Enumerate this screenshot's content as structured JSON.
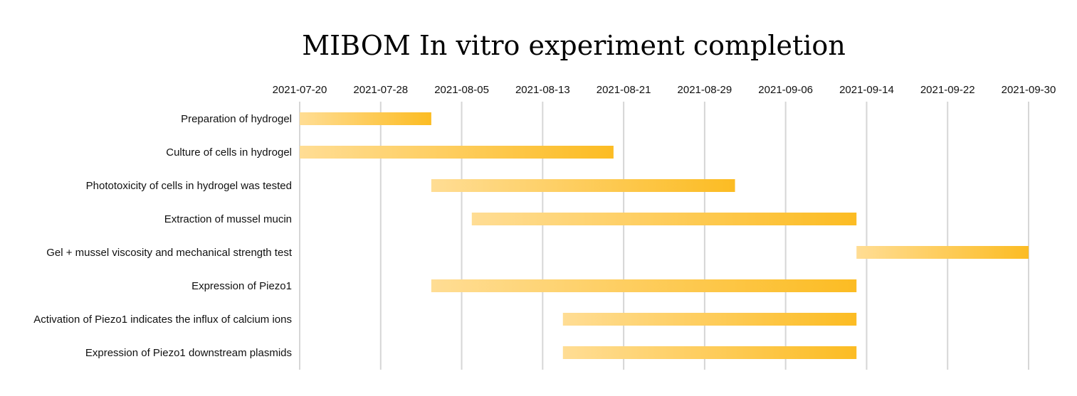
{
  "chart_data": {
    "type": "gantt",
    "title": "MIBOM In vitro experiment completion",
    "x_axis": {
      "type": "date",
      "position": "top",
      "range": [
        "2021-07-20",
        "2021-09-30"
      ],
      "ticks": [
        "2021-07-20",
        "2021-07-28",
        "2021-08-05",
        "2021-08-13",
        "2021-08-21",
        "2021-08-29",
        "2021-09-06",
        "2021-09-14",
        "2021-09-22",
        "2021-09-30"
      ]
    },
    "grid": {
      "vertical": true,
      "horizontal": false
    },
    "colors": {
      "bar_start": "#ffdd94",
      "bar_end": "#fcbc23",
      "grid": "#d6d6d6"
    },
    "tasks": [
      {
        "name": "Preparation of hydrogel",
        "start": "2021-07-20",
        "end": "2021-08-02"
      },
      {
        "name": "Culture of cells in hydrogel",
        "start": "2021-07-20",
        "end": "2021-08-20"
      },
      {
        "name": "Phototoxicity of cells in hydrogel was tested",
        "start": "2021-08-02",
        "end": "2021-09-01"
      },
      {
        "name": "Extraction of mussel mucin",
        "start": "2021-08-06",
        "end": "2021-09-13"
      },
      {
        "name": "Gel + mussel viscosity and mechanical strength test",
        "start": "2021-09-13",
        "end": "2021-09-30"
      },
      {
        "name": "Expression of Piezo1",
        "start": "2021-08-02",
        "end": "2021-09-13"
      },
      {
        "name": "Activation of Piezo1 indicates the influx of calcium ions",
        "start": "2021-08-15",
        "end": "2021-09-13"
      },
      {
        "name": "Expression of Piezo1 downstream plasmids",
        "start": "2021-08-15",
        "end": "2021-09-13"
      }
    ]
  }
}
